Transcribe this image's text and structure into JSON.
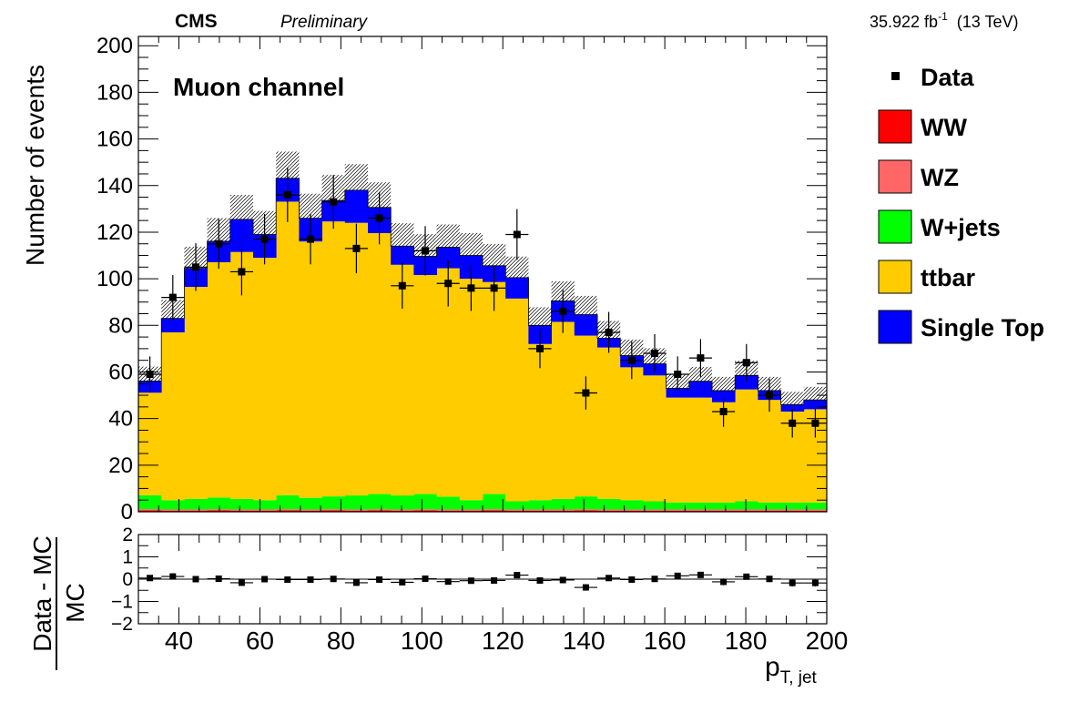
{
  "header": {
    "experiment": "CMS",
    "status": "Preliminary",
    "lumi_value": "35.922 fb",
    "lumi_exp": "-1",
    "energy": "(13 TeV)"
  },
  "chart_data": {
    "type": "bar",
    "stacked": true,
    "annotation": "Muon channel",
    "xlabel_main": "p",
    "xlabel_sub": "T, jet",
    "ylabel": "Number of events",
    "ratio_ylabel_num": "Data - MC",
    "ratio_ylabel_den": "MC",
    "xlim": [
      30,
      200
    ],
    "ylim": [
      0,
      204
    ],
    "ratio_ylim": [
      -2,
      2
    ],
    "x_ticks": [
      40,
      60,
      80,
      100,
      120,
      140,
      160,
      180,
      200
    ],
    "y_ticks": [
      0,
      20,
      40,
      60,
      80,
      100,
      120,
      140,
      160,
      180,
      200
    ],
    "ratio_ticks": [
      -2,
      -1,
      0,
      1,
      2
    ],
    "bin_edges": [
      30,
      35.67,
      41.33,
      47,
      52.67,
      58.33,
      64,
      69.67,
      75.33,
      81,
      86.67,
      92.33,
      98,
      103.67,
      109.33,
      115,
      120.67,
      126.33,
      132,
      137.67,
      143.33,
      149,
      154.67,
      160.33,
      166,
      171.67,
      177.33,
      183,
      188.67,
      194.33,
      200
    ],
    "series": [
      {
        "name": "WW",
        "color": "#ff0000",
        "values": [
          0.6,
          0.5,
          0.5,
          0.6,
          0.5,
          0.5,
          0.6,
          0.5,
          0.6,
          0.5,
          0.6,
          0.5,
          0.6,
          0.5,
          0.5,
          0.6,
          0.5,
          0.5,
          0.5,
          0.6,
          0.5,
          0.5,
          0.5,
          0.5,
          0.5,
          0.5,
          0.5,
          0.5,
          0.5,
          0.5
        ]
      },
      {
        "name": "WZ",
        "color": "#ff6666",
        "values": [
          0.5,
          0.5,
          0.5,
          0.5,
          0.5,
          0.5,
          0.5,
          0.5,
          0.5,
          0.5,
          0.5,
          0.5,
          0.5,
          0.5,
          0.5,
          0.5,
          0.5,
          0.5,
          0.5,
          0.5,
          0.5,
          0.5,
          0.5,
          0.5,
          0.5,
          0.5,
          0.5,
          0.5,
          0.5,
          0.5
        ]
      },
      {
        "name": "W+jets",
        "color": "#00ff00",
        "values": [
          6.0,
          4.0,
          4.5,
          5.0,
          4.5,
          4.0,
          6.0,
          5.0,
          5.5,
          6.0,
          6.5,
          6.0,
          6.5,
          5.5,
          4.0,
          6.5,
          3.5,
          4.0,
          4.5,
          5.5,
          4.5,
          4.0,
          3.5,
          3.0,
          3.0,
          3.0,
          3.5,
          3.0,
          3.0,
          3.0
        ]
      },
      {
        "name": "ttbar",
        "color": "#ffcc00",
        "values": [
          44,
          72,
          91,
          101,
          106,
          104,
          126,
          110,
          118,
          117,
          112,
          99,
          94,
          98,
          95,
          91,
          87,
          67,
          76,
          69,
          65,
          57,
          54,
          45,
          45,
          43,
          48,
          44,
          39,
          40
        ]
      },
      {
        "name": "Single Top",
        "color": "#0000ff",
        "values": [
          5,
          6,
          8,
          9,
          14,
          10,
          10,
          10,
          9,
          14,
          11,
          8,
          8,
          9,
          10,
          7,
          9,
          8,
          9,
          9,
          4,
          5,
          5,
          4,
          7,
          5,
          6,
          4,
          3,
          4
        ]
      }
    ],
    "data_series": {
      "name": "Data",
      "values": [
        59,
        92,
        105,
        115,
        103,
        117,
        136,
        117,
        133,
        113,
        126,
        97,
        112,
        98,
        96,
        96,
        119,
        70,
        86,
        51,
        77,
        65,
        68,
        59,
        66,
        43,
        64,
        50,
        38,
        38
      ]
    },
    "ratio_values": [
      0.05,
      0.12,
      0.0,
      0.02,
      -0.16,
      0.0,
      -0.02,
      -0.02,
      0.01,
      -0.16,
      -0.02,
      -0.14,
      0.02,
      -0.11,
      -0.07,
      -0.06,
      0.18,
      -0.06,
      -0.04,
      -0.37,
      0.05,
      -0.02,
      0.01,
      0.15,
      0.19,
      -0.12,
      0.11,
      0.01,
      -0.17,
      -0.17
    ]
  }
}
